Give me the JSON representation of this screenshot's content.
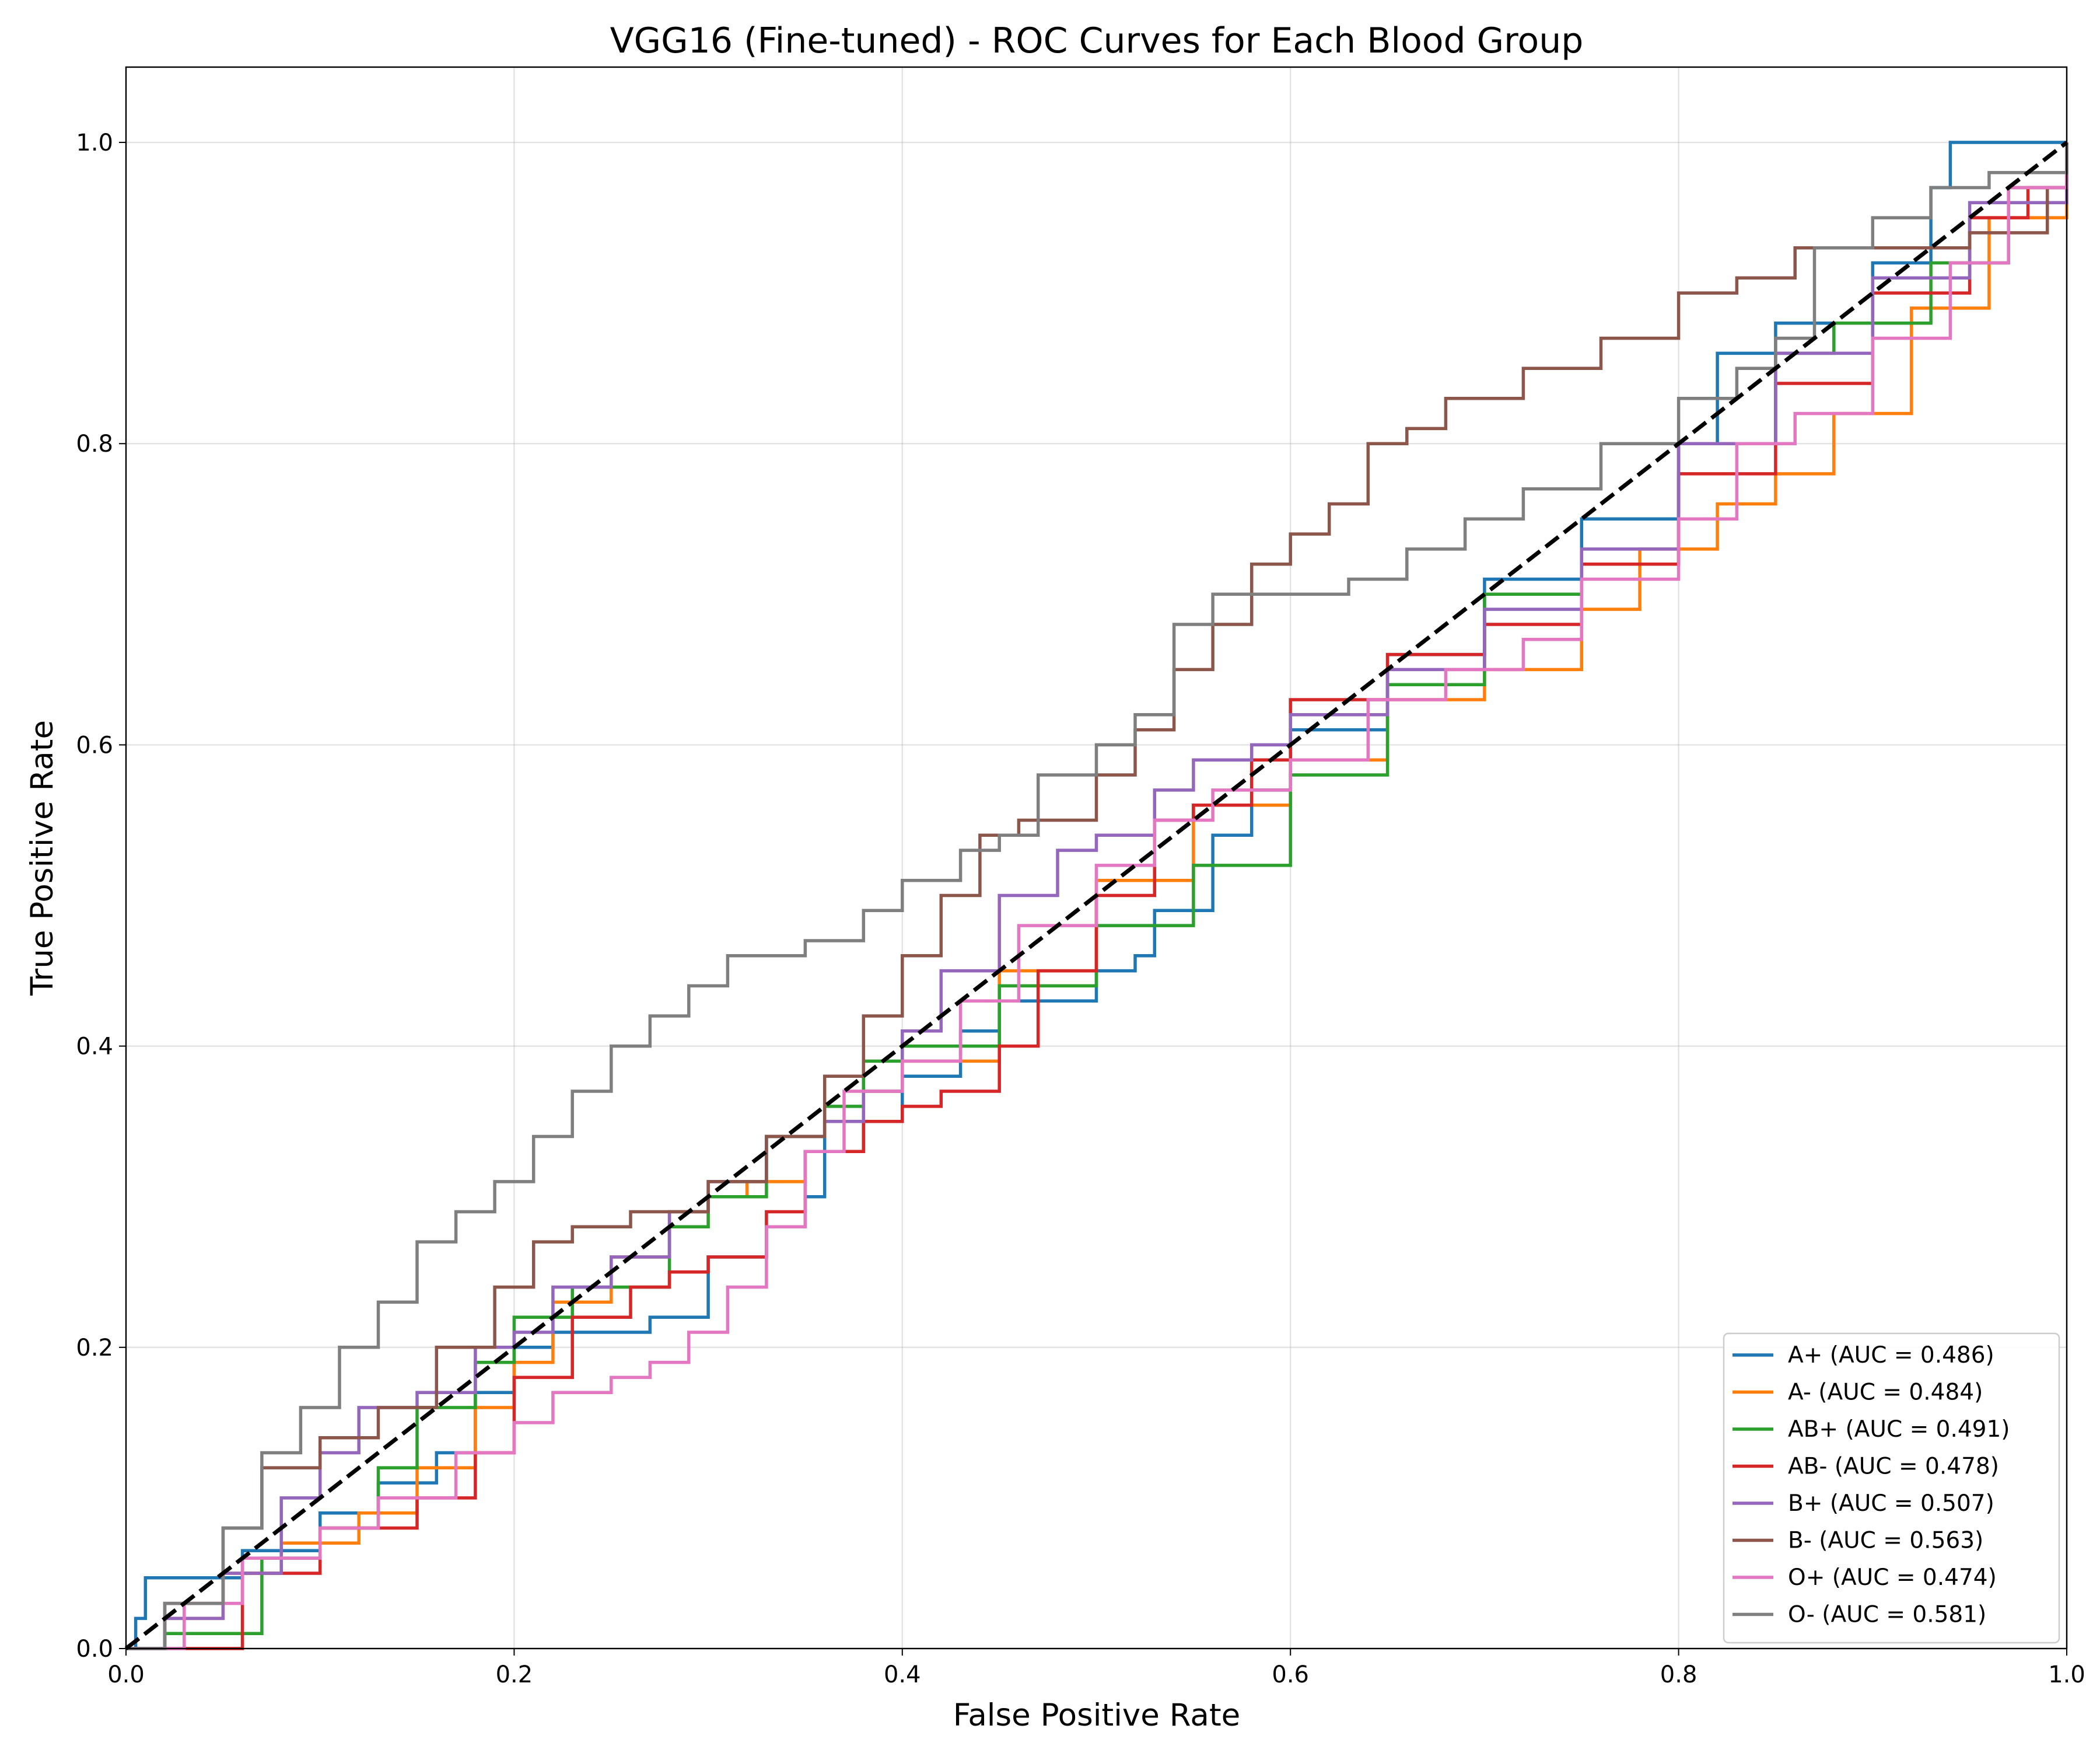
{
  "chart_data": {
    "type": "line",
    "title": "VGG16 (Fine-tuned) - ROC Curves for Each Blood Group",
    "xlabel": "False Positive Rate",
    "ylabel": "True Positive Rate",
    "xlim": [
      0.0,
      1.0
    ],
    "ylim": [
      0.0,
      1.05
    ],
    "xticks": [
      "0.0",
      "0.2",
      "0.4",
      "0.6",
      "0.8",
      "1.0"
    ],
    "yticks": [
      "0.0",
      "0.2",
      "0.4",
      "0.6",
      "0.8",
      "1.0"
    ],
    "grid": true,
    "legend_position": "lower right",
    "series": [
      {
        "name": "A+ (AUC = 0.486)",
        "color": "#1f77b4",
        "x": [
          0.0,
          0.005,
          0.01,
          0.04,
          0.06,
          0.1,
          0.13,
          0.16,
          0.18,
          0.2,
          0.22,
          0.27,
          0.3,
          0.33,
          0.35,
          0.36,
          0.4,
          0.43,
          0.45,
          0.47,
          0.5,
          0.52,
          0.53,
          0.55,
          0.56,
          0.58,
          0.6,
          0.65,
          0.7,
          0.75,
          0.8,
          0.82,
          0.85,
          0.88,
          0.9,
          0.93,
          0.94,
          0.96,
          1.0
        ],
        "y": [
          0.0,
          0.02,
          0.047,
          0.047,
          0.065,
          0.09,
          0.11,
          0.13,
          0.17,
          0.2,
          0.21,
          0.22,
          0.26,
          0.28,
          0.3,
          0.35,
          0.38,
          0.41,
          0.43,
          0.43,
          0.45,
          0.46,
          0.49,
          0.49,
          0.54,
          0.57,
          0.61,
          0.66,
          0.71,
          0.75,
          0.8,
          0.86,
          0.88,
          0.88,
          0.92,
          0.97,
          1.0,
          1.0,
          1.0
        ]
      },
      {
        "name": "A- (AUC = 0.484)",
        "color": "#ff7f0e",
        "x": [
          0.0,
          0.02,
          0.05,
          0.08,
          0.12,
          0.15,
          0.18,
          0.2,
          0.22,
          0.25,
          0.28,
          0.3,
          0.32,
          0.35,
          0.38,
          0.4,
          0.45,
          0.5,
          0.55,
          0.6,
          0.65,
          0.7,
          0.75,
          0.78,
          0.82,
          0.85,
          0.88,
          0.92,
          0.96,
          1.0
        ],
        "y": [
          0.0,
          0.02,
          0.05,
          0.07,
          0.09,
          0.12,
          0.16,
          0.19,
          0.23,
          0.26,
          0.29,
          0.3,
          0.31,
          0.33,
          0.37,
          0.39,
          0.45,
          0.51,
          0.56,
          0.59,
          0.63,
          0.65,
          0.69,
          0.73,
          0.76,
          0.78,
          0.82,
          0.89,
          0.95,
          1.0
        ]
      },
      {
        "name": "AB+ (AUC = 0.491)",
        "color": "#2ca02c",
        "x": [
          0.0,
          0.02,
          0.05,
          0.07,
          0.1,
          0.13,
          0.15,
          0.18,
          0.2,
          0.23,
          0.25,
          0.28,
          0.3,
          0.33,
          0.36,
          0.38,
          0.4,
          0.45,
          0.5,
          0.55,
          0.6,
          0.65,
          0.7,
          0.75,
          0.8,
          0.85,
          0.88,
          0.93,
          0.97,
          1.0
        ],
        "y": [
          0.0,
          0.01,
          0.01,
          0.06,
          0.08,
          0.12,
          0.16,
          0.19,
          0.22,
          0.24,
          0.24,
          0.28,
          0.3,
          0.34,
          0.36,
          0.39,
          0.4,
          0.44,
          0.48,
          0.52,
          0.58,
          0.64,
          0.7,
          0.72,
          0.8,
          0.86,
          0.88,
          0.92,
          0.97,
          1.0
        ]
      },
      {
        "name": "AB- (AUC = 0.478)",
        "color": "#d62728",
        "x": [
          0.0,
          0.02,
          0.025,
          0.03,
          0.06,
          0.1,
          0.13,
          0.15,
          0.18,
          0.2,
          0.23,
          0.26,
          0.28,
          0.3,
          0.33,
          0.35,
          0.38,
          0.4,
          0.42,
          0.45,
          0.47,
          0.5,
          0.53,
          0.55,
          0.58,
          0.6,
          0.65,
          0.7,
          0.75,
          0.8,
          0.85,
          0.9,
          0.95,
          0.98,
          1.0
        ],
        "y": [
          0.0,
          0.0,
          0.0,
          0.0,
          0.05,
          0.08,
          0.08,
          0.1,
          0.13,
          0.18,
          0.22,
          0.24,
          0.25,
          0.26,
          0.29,
          0.33,
          0.35,
          0.36,
          0.37,
          0.4,
          0.45,
          0.5,
          0.55,
          0.56,
          0.59,
          0.63,
          0.66,
          0.68,
          0.72,
          0.78,
          0.84,
          0.9,
          0.95,
          0.97,
          1.0
        ]
      },
      {
        "name": "B+ (AUC = 0.507)",
        "color": "#9467bd",
        "x": [
          0.0,
          0.02,
          0.05,
          0.08,
          0.1,
          0.12,
          0.15,
          0.18,
          0.2,
          0.22,
          0.25,
          0.28,
          0.3,
          0.33,
          0.36,
          0.38,
          0.4,
          0.42,
          0.45,
          0.48,
          0.5,
          0.53,
          0.55,
          0.58,
          0.6,
          0.65,
          0.7,
          0.75,
          0.8,
          0.85,
          0.9,
          0.95,
          1.0
        ],
        "y": [
          0.0,
          0.02,
          0.05,
          0.1,
          0.13,
          0.16,
          0.17,
          0.2,
          0.21,
          0.24,
          0.26,
          0.29,
          0.31,
          0.34,
          0.35,
          0.37,
          0.41,
          0.45,
          0.5,
          0.53,
          0.54,
          0.57,
          0.59,
          0.6,
          0.62,
          0.65,
          0.69,
          0.73,
          0.8,
          0.86,
          0.91,
          0.96,
          1.0
        ]
      },
      {
        "name": "B- (AUC = 0.563)",
        "color": "#8c564b",
        "x": [
          0.0,
          0.02,
          0.05,
          0.07,
          0.1,
          0.13,
          0.16,
          0.19,
          0.21,
          0.23,
          0.26,
          0.3,
          0.33,
          0.36,
          0.38,
          0.4,
          0.42,
          0.44,
          0.46,
          0.5,
          0.52,
          0.54,
          0.56,
          0.58,
          0.6,
          0.62,
          0.64,
          0.66,
          0.68,
          0.72,
          0.76,
          0.8,
          0.83,
          0.86,
          0.9,
          0.95,
          0.99,
          1.0
        ],
        "y": [
          0.0,
          0.03,
          0.08,
          0.12,
          0.14,
          0.16,
          0.2,
          0.24,
          0.27,
          0.28,
          0.29,
          0.31,
          0.34,
          0.38,
          0.42,
          0.46,
          0.5,
          0.54,
          0.55,
          0.58,
          0.61,
          0.65,
          0.68,
          0.72,
          0.74,
          0.76,
          0.8,
          0.81,
          0.83,
          0.85,
          0.87,
          0.9,
          0.91,
          0.93,
          0.93,
          0.94,
          0.97,
          1.0
        ]
      },
      {
        "name": "O+ (AUC = 0.474)",
        "color": "#e377c2",
        "x": [
          0.0,
          0.03,
          0.06,
          0.1,
          0.13,
          0.17,
          0.2,
          0.22,
          0.25,
          0.27,
          0.29,
          0.31,
          0.33,
          0.35,
          0.37,
          0.4,
          0.43,
          0.46,
          0.5,
          0.53,
          0.56,
          0.6,
          0.64,
          0.68,
          0.72,
          0.75,
          0.8,
          0.83,
          0.86,
          0.9,
          0.94,
          0.97,
          1.0
        ],
        "y": [
          0.0,
          0.03,
          0.06,
          0.08,
          0.1,
          0.13,
          0.15,
          0.17,
          0.18,
          0.19,
          0.21,
          0.24,
          0.28,
          0.33,
          0.37,
          0.39,
          0.43,
          0.48,
          0.52,
          0.55,
          0.57,
          0.59,
          0.63,
          0.65,
          0.67,
          0.71,
          0.75,
          0.8,
          0.82,
          0.87,
          0.92,
          0.97,
          1.0
        ]
      },
      {
        "name": "O- (AUC = 0.581)",
        "color": "#7f7f7f",
        "x": [
          0.0,
          0.02,
          0.05,
          0.07,
          0.09,
          0.11,
          0.13,
          0.15,
          0.17,
          0.19,
          0.21,
          0.23,
          0.25,
          0.27,
          0.29,
          0.31,
          0.35,
          0.38,
          0.4,
          0.43,
          0.45,
          0.47,
          0.5,
          0.52,
          0.54,
          0.56,
          0.6,
          0.63,
          0.66,
          0.69,
          0.72,
          0.76,
          0.78,
          0.8,
          0.83,
          0.85,
          0.87,
          0.9,
          0.93,
          0.96,
          1.0
        ],
        "y": [
          0.0,
          0.03,
          0.08,
          0.13,
          0.16,
          0.2,
          0.23,
          0.27,
          0.29,
          0.31,
          0.34,
          0.37,
          0.4,
          0.42,
          0.44,
          0.46,
          0.47,
          0.49,
          0.51,
          0.53,
          0.54,
          0.58,
          0.6,
          0.62,
          0.68,
          0.7,
          0.7,
          0.71,
          0.73,
          0.75,
          0.77,
          0.8,
          0.8,
          0.83,
          0.85,
          0.87,
          0.93,
          0.95,
          0.97,
          0.98,
          1.0
        ]
      }
    ],
    "reference_line": {
      "style": "dashed",
      "color": "#000000",
      "x": [
        0.0,
        1.0
      ],
      "y": [
        0.0,
        1.0
      ]
    }
  }
}
